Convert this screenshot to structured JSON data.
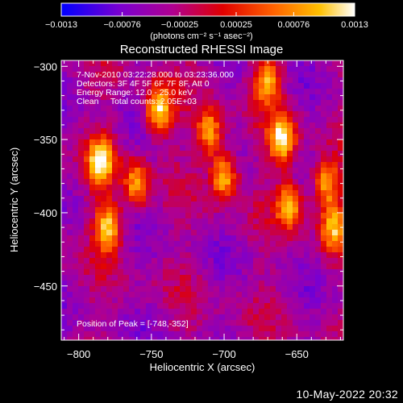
{
  "chart_data": {
    "type": "heatmap",
    "title": "Reconstructed RHESSI Image",
    "xlabel": "Heliocentric X (arcsec)",
    "ylabel": "Heliocentric Y (arcsec)",
    "xlim": [
      -812,
      -618
    ],
    "ylim": [
      -487,
      -296
    ],
    "x_ticks": [
      -800,
      -750,
      -700,
      -650
    ],
    "y_ticks": [
      -300,
      -350,
      -400,
      -450
    ],
    "colorbar": {
      "min": -0.0013,
      "max": 0.0013,
      "ticks": [
        "-0.0013",
        "-0.00076",
        "-0.00025",
        "0.00025",
        "0.00076",
        "0.0013"
      ],
      "units": "(photons cm⁻² s⁻¹ asec⁻²)",
      "colors": [
        "#0000ff",
        "#7a00d0",
        "#b00090",
        "#e00000",
        "#ff6000",
        "#ffc000",
        "#ffffff"
      ]
    },
    "annotations": {
      "time_range": "7-Nov-2010 03:22:28.000 to 03:23:36.000",
      "detectors": "Detectors: 3F 4F 5F 6F 7F 8F, Att 0",
      "energy": "Energy Range: 12.0 - 25.0 keV",
      "clean": "Clean     Total counts: 2.05E+03",
      "peak": "Position of Peak = [-748,-352]"
    },
    "bright_sources": [
      {
        "x": -785,
        "y": -365,
        "level": 0.0012
      },
      {
        "x": -780,
        "y": -410,
        "level": 0.0011
      },
      {
        "x": -745,
        "y": -330,
        "level": 0.0013
      },
      {
        "x": -760,
        "y": -380,
        "level": 0.0009
      },
      {
        "x": -710,
        "y": -345,
        "level": 0.001
      },
      {
        "x": -700,
        "y": -375,
        "level": 0.0011
      },
      {
        "x": -670,
        "y": -310,
        "level": 0.0009
      },
      {
        "x": -660,
        "y": -350,
        "level": 0.0013
      },
      {
        "x": -655,
        "y": -395,
        "level": 0.001
      },
      {
        "x": -630,
        "y": -380,
        "level": 0.001
      },
      {
        "x": -625,
        "y": -410,
        "level": 0.0009
      }
    ]
  },
  "footer_timestamp": "10-May-2022 20:32"
}
